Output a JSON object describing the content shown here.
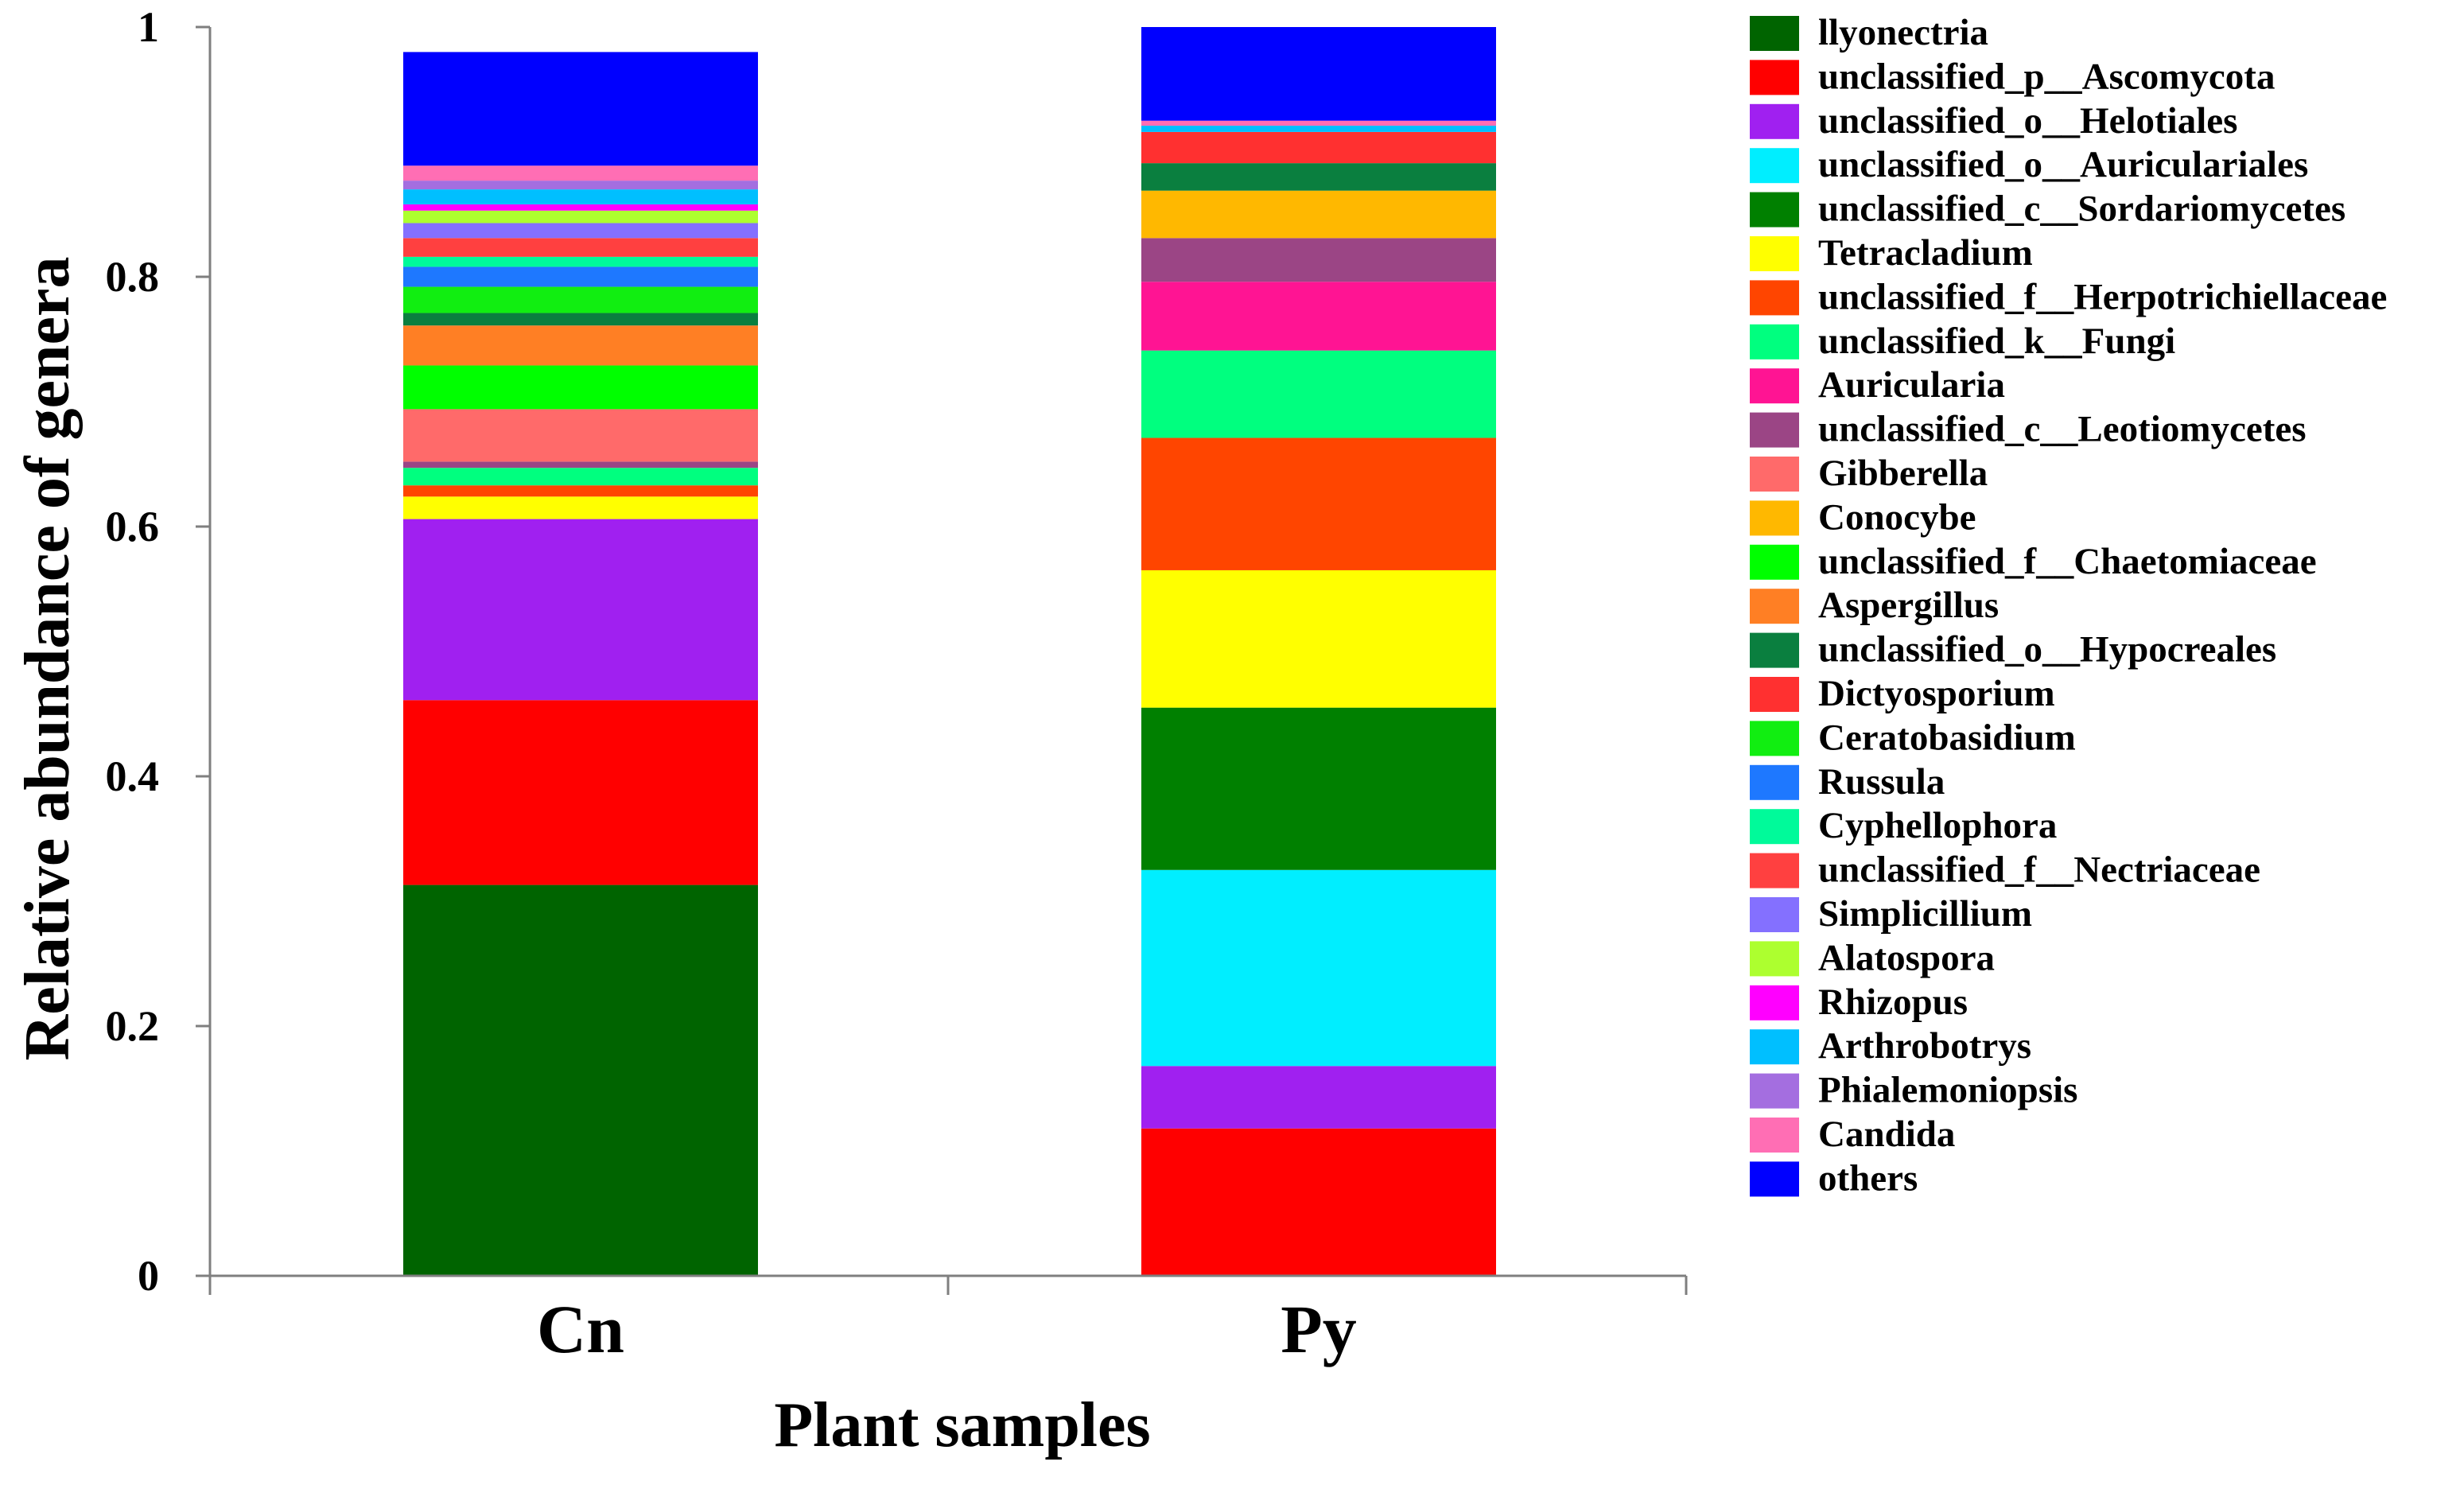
{
  "chart_data": {
    "type": "bar",
    "stacked": true,
    "title": "",
    "xlabel": "Plant samples",
    "ylabel": "Relative abundance of genera",
    "ylim": [
      0,
      1
    ],
    "yticks": [
      0,
      0.2,
      0.4,
      0.6,
      0.8,
      1
    ],
    "ytick_labels": [
      "0",
      "0.2",
      "0.4",
      "0.6",
      "0.8",
      "1"
    ],
    "categories": [
      "Cn",
      "Py"
    ],
    "legend_position": "right",
    "series": [
      {
        "name": "llyonectria",
        "color": "#006400",
        "values": [
          0.313,
          0.0
        ]
      },
      {
        "name": "unclassified_p__Ascomycota",
        "color": "#ff0000",
        "values": [
          0.148,
          0.118
        ]
      },
      {
        "name": "unclassified_o__Helotiales",
        "color": "#a020f0",
        "values": [
          0.145,
          0.05
        ]
      },
      {
        "name": "unclassified_o__Auriculariales",
        "color": "#00eeff",
        "values": [
          0.0,
          0.157
        ]
      },
      {
        "name": "unclassified_c__Sordariomycetes",
        "color": "#008000",
        "values": [
          0.0,
          0.13
        ]
      },
      {
        "name": "Tetracladium",
        "color": "#ffff00",
        "values": [
          0.018,
          0.11
        ]
      },
      {
        "name": "unclassified_f__Herpotrichiellaceae",
        "color": "#ff4500",
        "values": [
          0.009,
          0.106
        ]
      },
      {
        "name": "unclassified_k__Fungi",
        "color": "#00ff7f",
        "values": [
          0.014,
          0.07
        ]
      },
      {
        "name": "Auricularia",
        "color": "#ff1493",
        "values": [
          0.0,
          0.055
        ]
      },
      {
        "name": "unclassified_c__Leotiomycetes",
        "color": "#9b4585",
        "values": [
          0.005,
          0.035
        ]
      },
      {
        "name": "Gibberella",
        "color": "#ff6a6a",
        "values": [
          0.042,
          0.0
        ]
      },
      {
        "name": "Conocybe",
        "color": "#ffb800",
        "values": [
          0.0,
          0.038
        ]
      },
      {
        "name": "unclassified_f__Chaetomiaceae",
        "color": "#00ff00",
        "values": [
          0.035,
          0.0
        ]
      },
      {
        "name": "Aspergillus",
        "color": "#ff7f24",
        "values": [
          0.032,
          0.0
        ]
      },
      {
        "name": "unclassified_o__Hypocreales",
        "color": "#0a7f3f",
        "values": [
          0.01,
          0.022
        ]
      },
      {
        "name": "Dictyosporium",
        "color": "#ff3030",
        "values": [
          0.0,
          0.025
        ]
      },
      {
        "name": "Ceratobasidium",
        "color": "#11ee11",
        "values": [
          0.021,
          0.0
        ]
      },
      {
        "name": "Russula",
        "color": "#1e78ff",
        "values": [
          0.016,
          0.0
        ]
      },
      {
        "name": "Cyphellophora",
        "color": "#00fa9a",
        "values": [
          0.008,
          0.0
        ]
      },
      {
        "name": "unclassified_f__Nectriaceae",
        "color": "#ff4040",
        "values": [
          0.015,
          0.0
        ]
      },
      {
        "name": "Simplicillium",
        "color": "#8470ff",
        "values": [
          0.012,
          0.0
        ]
      },
      {
        "name": "Alatospora",
        "color": "#adff2f",
        "values": [
          0.01,
          0.0
        ]
      },
      {
        "name": "Rhizopus",
        "color": "#ff00ff",
        "values": [
          0.005,
          0.0
        ]
      },
      {
        "name": "Arthrobotrys",
        "color": "#00bfff",
        "values": [
          0.012,
          0.005
        ]
      },
      {
        "name": "Phialemoniopsis",
        "color": "#a46ee0",
        "values": [
          0.007,
          0.0
        ]
      },
      {
        "name": "Candida",
        "color": "#ff6eb4",
        "values": [
          0.012,
          0.004
        ]
      },
      {
        "name": "others",
        "color": "#0000ff",
        "values": [
          0.091,
          0.075
        ]
      }
    ]
  }
}
